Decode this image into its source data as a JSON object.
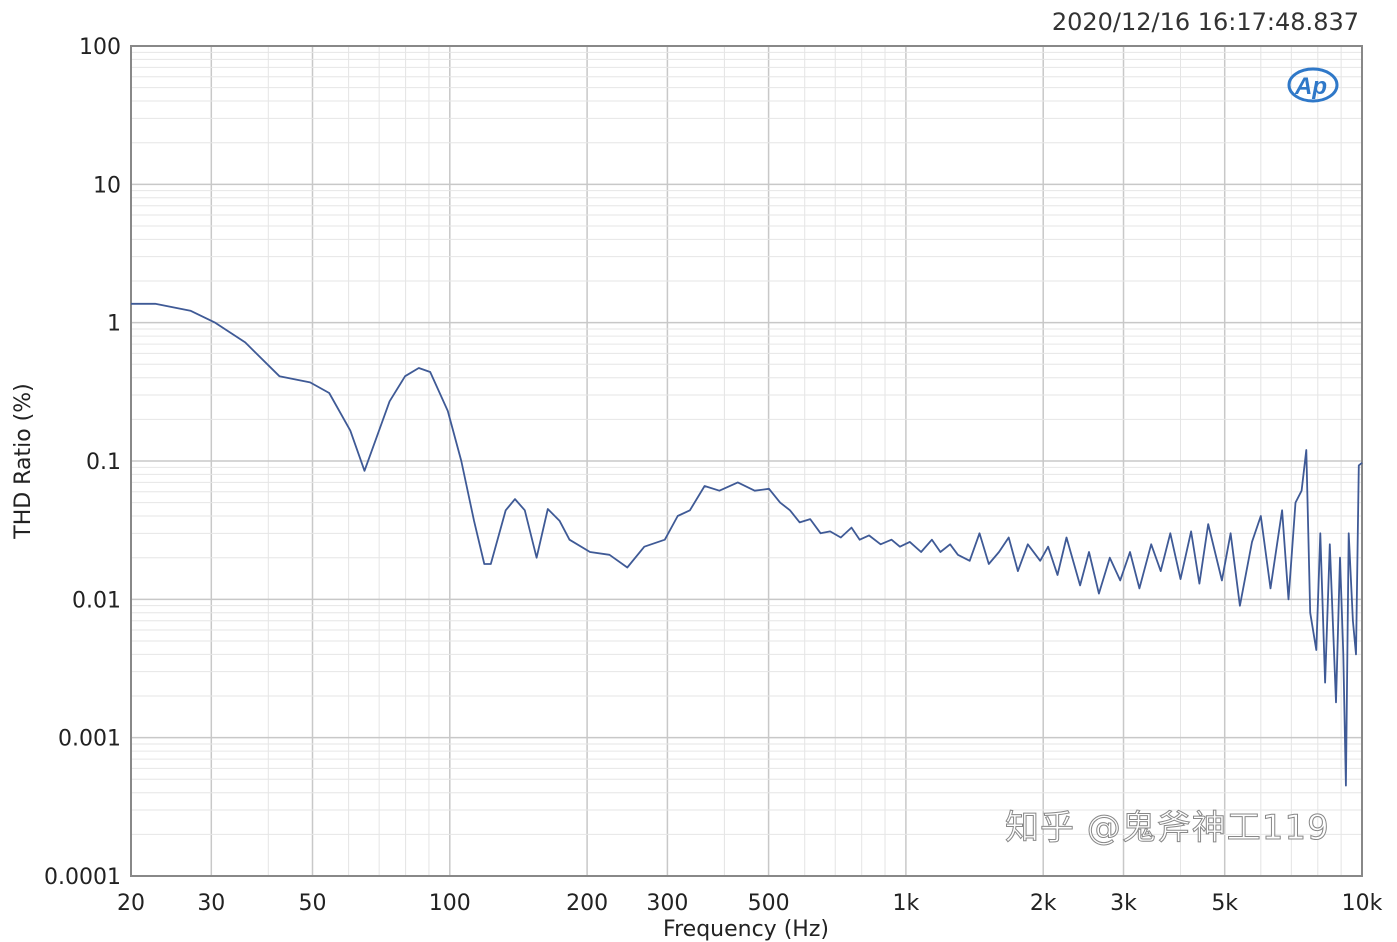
{
  "timestamp": "2020/12/16 16:17:48.837",
  "logo_text": "AP",
  "watermark": "知乎 @鬼斧神工119",
  "chart_data": {
    "type": "line",
    "title": "",
    "xlabel": "Frequency (Hz)",
    "ylabel": "THD Ratio (%)",
    "xscale": "log",
    "yscale": "log",
    "xlim": [
      20,
      10000
    ],
    "ylim": [
      0.0001,
      100
    ],
    "grid": true,
    "line_color": "#3f5a96",
    "x_ticks": [
      {
        "value": 20,
        "label": "20"
      },
      {
        "value": 30,
        "label": "30"
      },
      {
        "value": 50,
        "label": "50"
      },
      {
        "value": 100,
        "label": "100"
      },
      {
        "value": 200,
        "label": "200"
      },
      {
        "value": 300,
        "label": "300"
      },
      {
        "value": 500,
        "label": "500"
      },
      {
        "value": 1000,
        "label": "1k"
      },
      {
        "value": 2000,
        "label": "2k"
      },
      {
        "value": 3000,
        "label": "3k"
      },
      {
        "value": 5000,
        "label": "5k"
      },
      {
        "value": 10000,
        "label": "10k"
      }
    ],
    "y_ticks": [
      {
        "value": 100,
        "label": "100"
      },
      {
        "value": 10,
        "label": "10"
      },
      {
        "value": 1,
        "label": "1"
      },
      {
        "value": 0.1,
        "label": "0.1"
      },
      {
        "value": 0.01,
        "label": "0.01"
      },
      {
        "value": 0.001,
        "label": "0.001"
      },
      {
        "value": 0.0001,
        "label": "0.0001"
      }
    ],
    "series": [
      {
        "x": [
          20,
          22.6,
          27,
          30.6,
          35.6,
          42.3,
          49.4,
          54.4,
          60.5,
          65,
          73.8,
          79.8,
          85.5,
          90.6,
          99,
          106,
          113,
          119,
          123,
          132.6,
          139,
          146,
          155,
          164,
          174,
          183,
          203,
          224,
          245,
          267,
          296,
          316,
          336,
          362,
          390,
          428,
          466,
          501,
          530,
          557,
          585,
          617,
          650,
          682,
          720,
          760,
          792,
          830,
          880,
          930,
          970,
          1020,
          1080,
          1140,
          1190,
          1250,
          1300,
          1380,
          1450,
          1520,
          1600,
          1680,
          1760,
          1850,
          1970,
          2050,
          2150,
          2250,
          2410,
          2520,
          2650,
          2800,
          2950,
          3100,
          3250,
          3450,
          3620,
          3800,
          4000,
          4220,
          4400,
          4600,
          4930,
          5150,
          5400,
          5740,
          6000,
          6300,
          6680,
          6900,
          7150,
          7370,
          7550,
          7700,
          7940,
          8100,
          8300,
          8500,
          8770,
          8950,
          9100,
          9220,
          9350,
          9550,
          9700,
          9840,
          10000
        ],
        "y": [
          1.37,
          1.37,
          1.22,
          1.0,
          0.72,
          0.41,
          0.37,
          0.31,
          0.166,
          0.085,
          0.27,
          0.41,
          0.47,
          0.44,
          0.23,
          0.1,
          0.037,
          0.018,
          0.018,
          0.044,
          0.053,
          0.044,
          0.02,
          0.045,
          0.037,
          0.027,
          0.022,
          0.021,
          0.017,
          0.024,
          0.027,
          0.04,
          0.044,
          0.066,
          0.061,
          0.07,
          0.061,
          0.063,
          0.05,
          0.044,
          0.036,
          0.038,
          0.03,
          0.031,
          0.028,
          0.033,
          0.027,
          0.029,
          0.025,
          0.027,
          0.024,
          0.026,
          0.022,
          0.027,
          0.022,
          0.025,
          0.021,
          0.019,
          0.03,
          0.018,
          0.022,
          0.028,
          0.016,
          0.025,
          0.019,
          0.024,
          0.015,
          0.028,
          0.0126,
          0.022,
          0.011,
          0.02,
          0.0137,
          0.022,
          0.012,
          0.025,
          0.016,
          0.03,
          0.014,
          0.031,
          0.013,
          0.035,
          0.0137,
          0.03,
          0.009,
          0.026,
          0.04,
          0.012,
          0.044,
          0.01,
          0.05,
          0.061,
          0.12,
          0.008,
          0.0043,
          0.03,
          0.0025,
          0.025,
          0.0018,
          0.02,
          0.004,
          0.00045,
          0.03,
          0.007,
          0.004,
          0.093,
          0.097
        ]
      }
    ]
  }
}
